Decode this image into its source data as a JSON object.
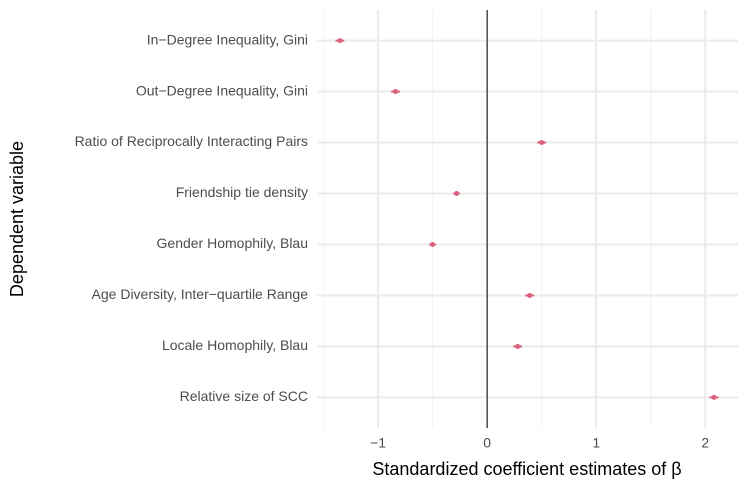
{
  "chart_data": {
    "type": "dotplot",
    "xlabel": "Standardized coefficient estimates of  β",
    "ylabel": "Dependent variable",
    "categories": [
      "In−Degree Inequality, Gini",
      "Out−Degree Inequality, Gini",
      "Ratio of Reciprocally Interacting Pairs",
      "Friendship tie density",
      "Gender Homophily, Blau",
      "Age Diversity, Inter−quartile Range",
      "Locale Homophily, Blau",
      "Relative size of SCC"
    ],
    "values": [
      -1.35,
      -0.84,
      0.5,
      -0.28,
      -0.5,
      0.39,
      0.28,
      2.08
    ],
    "errors": [
      0.04,
      0.04,
      0.04,
      0.03,
      0.03,
      0.04,
      0.04,
      0.04
    ],
    "color": "#d9607a",
    "xlim": [
      -1.56,
      2.3
    ],
    "xticks": [
      {
        "value": -1,
        "label": "−1"
      },
      0,
      1,
      2
    ],
    "minor_xticks": [
      -1.5,
      -0.5,
      0.5,
      1.5
    ],
    "vline": 0,
    "grid": true
  }
}
